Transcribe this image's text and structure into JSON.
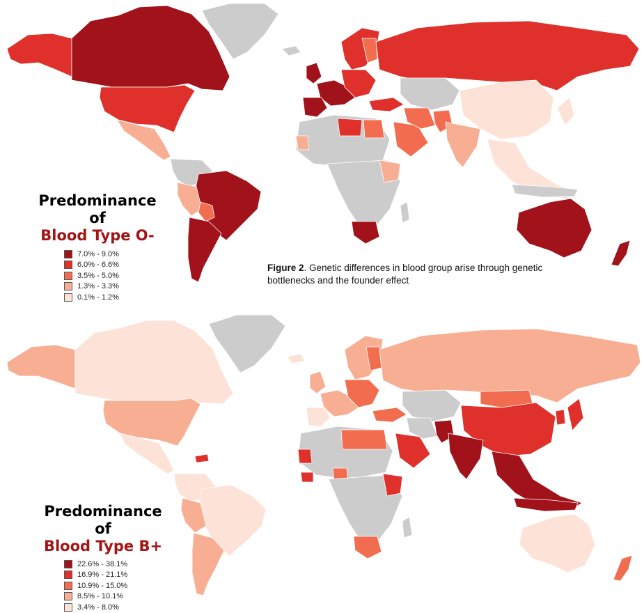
{
  "caption": {
    "label": "Figure 2",
    "text": ". Genetic differences in blood group arise through genetic bottlenecks and the founder effect"
  },
  "maps": [
    {
      "legend_title_1": "Predominance of",
      "legend_title_2": "Blood Type O-",
      "legend": [
        {
          "label": "7.0% - 9.0%",
          "color": "#a1121a"
        },
        {
          "label": "6.0% - 6.6%",
          "color": "#df302b"
        },
        {
          "label": "3.5% - 5.0%",
          "color": "#f26c4f"
        },
        {
          "label": "1.3% - 3.3%",
          "color": "#f8ae93"
        },
        {
          "label": "0.1% - 1.2%",
          "color": "#fde3d7"
        }
      ],
      "no_data_color": "#cccccc"
    },
    {
      "legend_title_1": "Predominance of",
      "legend_title_2": "Blood Type B+",
      "legend": [
        {
          "label": "22.6% - 38.1%",
          "color": "#a1121a"
        },
        {
          "label": "16.9% - 21.1%",
          "color": "#df302b"
        },
        {
          "label": "10.9% - 15.0%",
          "color": "#f26c4f"
        },
        {
          "label": "8.5% - 10.1%",
          "color": "#f8ae93"
        },
        {
          "label": "3.4% - 8.0%",
          "color": "#fde3d7"
        }
      ],
      "no_data_color": "#cccccc"
    }
  ]
}
